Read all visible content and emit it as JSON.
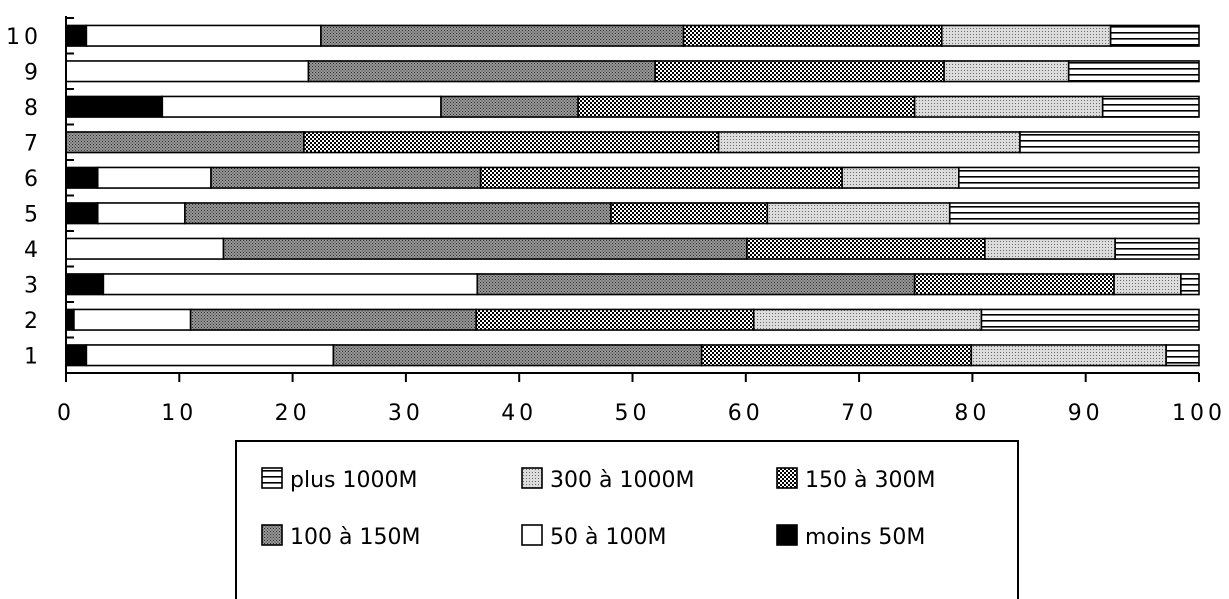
{
  "chart_data": {
    "type": "bar",
    "orientation": "horizontal",
    "stacked": true,
    "title": "",
    "xlabel": "",
    "ylabel": "",
    "xlim": [
      0,
      100
    ],
    "x_ticks": [
      "0",
      "10",
      "20",
      "30",
      "40",
      "50",
      "60",
      "70",
      "80",
      "90",
      "100"
    ],
    "categories": [
      "10",
      "9",
      "8",
      "7",
      "6",
      "5",
      "4",
      "3",
      "2",
      "1"
    ],
    "legend_placement": "bottom",
    "series": [
      {
        "name": "moins 50M",
        "pattern": "solid-black",
        "values": [
          1.8,
          0,
          8.5,
          0,
          2.8,
          2.8,
          0,
          3.3,
          0.7,
          1.8
        ]
      },
      {
        "name": "50 à 100M",
        "pattern": "white",
        "values": [
          20.7,
          21.4,
          24.6,
          0,
          10.0,
          7.7,
          13.9,
          33.0,
          10.3,
          21.8
        ]
      },
      {
        "name": "100 à 150M",
        "pattern": "dense-dots",
        "values": [
          32.0,
          30.6,
          12.1,
          21.0,
          23.8,
          37.6,
          46.2,
          38.6,
          25.2,
          32.5
        ]
      },
      {
        "name": "150 à 300M",
        "pattern": "checker",
        "values": [
          22.8,
          25.5,
          29.7,
          36.6,
          31.9,
          13.8,
          21.0,
          17.6,
          24.5,
          23.8
        ]
      },
      {
        "name": "300 à 1000M",
        "pattern": "light-dots",
        "values": [
          14.9,
          11.0,
          16.6,
          26.6,
          10.3,
          16.1,
          11.5,
          5.9,
          20.1,
          17.2
        ]
      },
      {
        "name": "plus  1000M",
        "pattern": "hlines",
        "values": [
          7.8,
          11.5,
          8.5,
          15.8,
          21.2,
          22.0,
          7.4,
          1.6,
          19.2,
          2.9
        ]
      }
    ]
  }
}
